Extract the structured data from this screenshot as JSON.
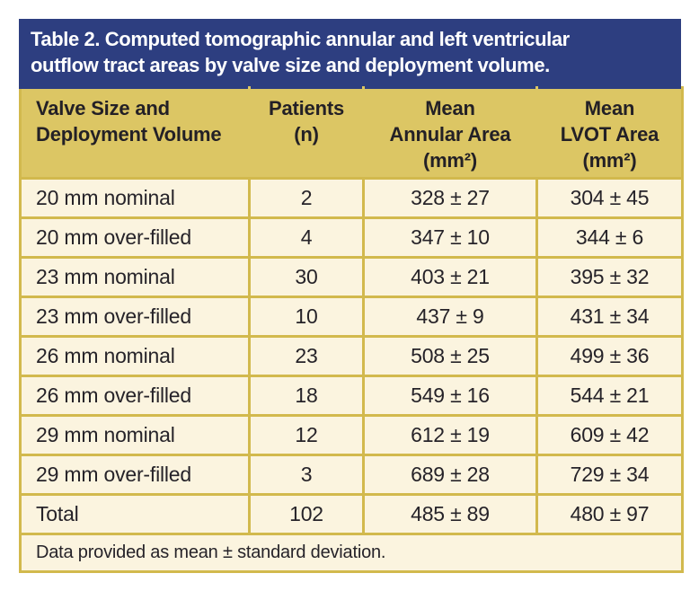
{
  "table": {
    "title_lines": [
      "Table 2. Computed tomographic annular and left ventricular",
      "outflow tract areas by valve size and deployment volume."
    ],
    "columns": [
      {
        "name": "Valve Size and Deployment Volume",
        "lines": [
          "Valve Size and",
          "Deployment Volume",
          ""
        ]
      },
      {
        "name": "Patients (n)",
        "lines": [
          "Patients",
          "(n)",
          ""
        ]
      },
      {
        "name": "Mean Annular Area (mm²)",
        "lines": [
          "Mean",
          "Annular Area",
          "(mm²)"
        ]
      },
      {
        "name": "Mean LVOT Area (mm²)",
        "lines": [
          "Mean",
          "LVOT Area",
          "(mm²)"
        ]
      }
    ],
    "rows": [
      [
        "20 mm nominal",
        "2",
        "328 ± 27",
        "304 ± 45"
      ],
      [
        "20 mm over-filled",
        "4",
        "347 ± 10",
        "344 ± 6"
      ],
      [
        "23 mm nominal",
        "30",
        "403 ± 21",
        "395 ± 32"
      ],
      [
        "23 mm over-filled",
        "10",
        "437 ± 9",
        "431 ± 34"
      ],
      [
        "26 mm nominal",
        "23",
        "508 ± 25",
        "499 ± 36"
      ],
      [
        "26 mm over-filled",
        "18",
        "549 ± 16",
        "544 ± 21"
      ],
      [
        "29 mm nominal",
        "12",
        "612 ± 19",
        "609 ± 42"
      ],
      [
        "29 mm over-filled",
        "3",
        "689 ± 28",
        "729 ± 34"
      ],
      [
        "Total",
        "102",
        "485 ± 89",
        "480 ± 97"
      ]
    ],
    "footnote": "Data provided as mean ± standard deviation.",
    "colors": {
      "title_background": "#2d3e80",
      "title_text": "#ffffff",
      "header_background": "#dcc664",
      "row_background": "#fbf4df",
      "border": "#d2b94d",
      "body_text": "#262329"
    }
  }
}
